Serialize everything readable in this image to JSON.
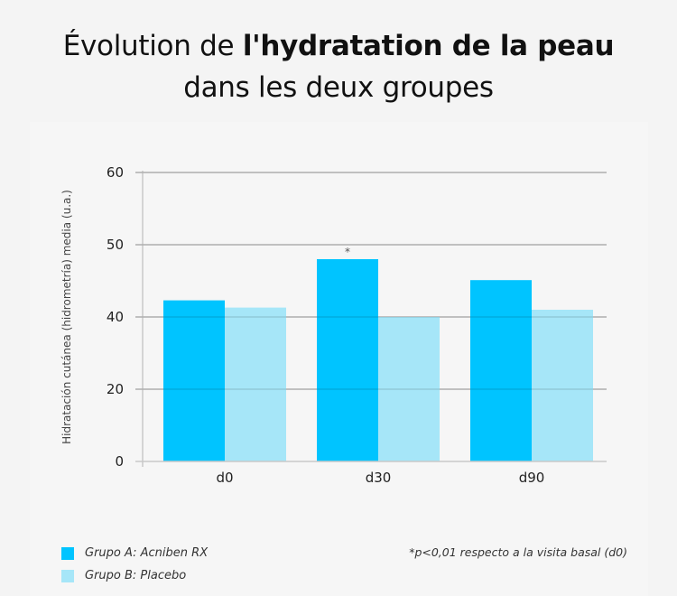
{
  "title": {
    "part1": "Évolution de ",
    "bold": "l'hydratation de la peau",
    "line2": "dans les deux groupes"
  },
  "colors": {
    "group_a": "#00c4ff",
    "group_b": "#a6e6f8",
    "grid": "#c8c8c8"
  },
  "chart_data": {
    "type": "bar",
    "title": "Évolution de l'hydratation de la peau dans les deux groupes",
    "xlabel": "",
    "ylabel": "Hidratación cutánea (hidrometría) media (u.a.)",
    "categories": [
      "d0",
      "d30",
      "d90"
    ],
    "y_ticks": [
      0,
      20,
      40,
      50,
      60
    ],
    "y_tick_labels": [
      "0",
      "20",
      "40",
      "50",
      "60"
    ],
    "ylim": [
      0,
      60
    ],
    "grid": true,
    "series": [
      {
        "name": "Grupo A: Acniben RX",
        "values": [
          42.3,
          48.0,
          45.1
        ]
      },
      {
        "name": "Grupo B: Placebo",
        "values": [
          41.3,
          40.0,
          41.0
        ]
      }
    ],
    "annotations": [
      {
        "category": "d30",
        "series": "Grupo A: Acniben RX",
        "text": "*"
      }
    ],
    "legend_position": "bottom-left",
    "footnote": "*p<0,01 respecto a la visita basal (d0)"
  }
}
